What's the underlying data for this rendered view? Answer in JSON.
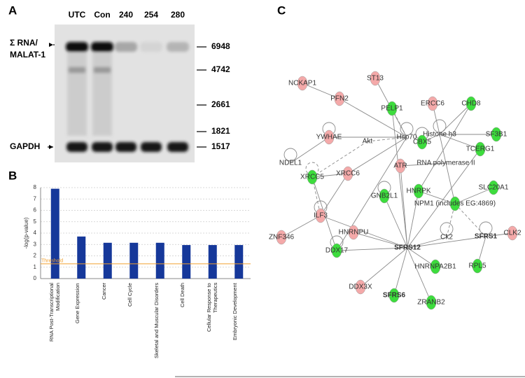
{
  "panels": {
    "a": "A",
    "b": "B",
    "c": "C"
  },
  "blot": {
    "lanes": [
      "UTC",
      "Con",
      "240",
      "254",
      "280"
    ],
    "left_labels": [
      "Σ RNA/",
      "MALAT-1",
      "GAPDH"
    ],
    "markers": [
      "6948",
      "4742",
      "2661",
      "1821",
      "1517"
    ]
  },
  "chart_data": {
    "type": "bar",
    "ylabel": "-log(p-value)",
    "categories": [
      "RNA Post-Transcriptional Modification",
      "Gene Expression",
      "Cancer",
      "Cell Cycle",
      "Skeletal and Muscular Disorders",
      "Cell Death",
      "Cellular Response to Therapeutics",
      "Embryonic Development"
    ],
    "values": [
      7.9,
      3.7,
      3.15,
      3.15,
      3.15,
      2.95,
      2.95,
      2.95
    ],
    "color": "#16389a",
    "ylim": [
      0,
      8
    ],
    "yticks": [
      0,
      1,
      2,
      3,
      4,
      5,
      6,
      7,
      8
    ],
    "grid": true,
    "threshold": 1.3,
    "threshold_label": "Threshold",
    "threshold_color": "#f0a030"
  },
  "network": {
    "nodes": [
      {
        "label": "NCKAP1",
        "color": "#f4a9a9"
      },
      {
        "label": "ST13",
        "color": "#f4a9a9"
      },
      {
        "label": "PFN2",
        "color": "#f4a9a9"
      },
      {
        "label": "PELP1",
        "color": "#3ddc3d"
      },
      {
        "label": "ERCC6",
        "color": "#f4a9a9"
      },
      {
        "label": "CHD8",
        "color": "#3ddc3d"
      },
      {
        "label": "YWHAE",
        "color": "#f4a9a9"
      },
      {
        "label": "Akt"
      },
      {
        "label": "Hsp70"
      },
      {
        "label": "Histone h3"
      },
      {
        "label": "CBX5",
        "color": "#3ddc3d"
      },
      {
        "label": "SF3B1",
        "color": "#3ddc3d"
      },
      {
        "label": "TCERG1",
        "color": "#3ddc3d"
      },
      {
        "label": "NDEL1"
      },
      {
        "label": "XRCC6",
        "color": "#f4a9a9"
      },
      {
        "label": "ATR",
        "color": "#f4a9a9"
      },
      {
        "label": "RNA polymerase II"
      },
      {
        "label": "XRCC5",
        "color": "#3ddc3d"
      },
      {
        "label": "SLC20A1",
        "color": "#3ddc3d"
      },
      {
        "label": "GNB2L1",
        "color": "#3ddc3d"
      },
      {
        "label": "HNRPK",
        "color": "#3ddc3d"
      },
      {
        "label": "NPM1 (includes EG:4869)",
        "color": "#3ddc3d"
      },
      {
        "label": "ILF3",
        "color": "#f4a9a9"
      },
      {
        "label": "ZNF346",
        "color": "#f4a9a9"
      },
      {
        "label": "HNRNPU",
        "color": "#f4a9a9"
      },
      {
        "label": "SFRS12",
        "bold": true
      },
      {
        "label": "Ck2"
      },
      {
        "label": "SFRS1",
        "bold": true
      },
      {
        "label": "CLK2",
        "color": "#f4a9a9"
      },
      {
        "label": "DDX17",
        "color": "#3ddc3d"
      },
      {
        "label": "HNRNPA2B1",
        "color": "#3ddc3d"
      },
      {
        "label": "RPL5",
        "color": "#3ddc3d"
      },
      {
        "label": "DDX3X",
        "color": "#f4a9a9"
      },
      {
        "label": "SFRS6",
        "color": "#3ddc3d",
        "bold": true
      },
      {
        "label": "ZRANB2",
        "color": "#3ddc3d"
      }
    ]
  }
}
